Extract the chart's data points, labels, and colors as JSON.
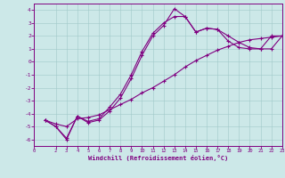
{
  "xlabel": "Windchill (Refroidissement éolien,°C)",
  "xlim": [
    0,
    23
  ],
  "ylim": [
    -6.5,
    4.5
  ],
  "yticks": [
    -6,
    -5,
    -4,
    -3,
    -2,
    -1,
    0,
    1,
    2,
    3,
    4
  ],
  "xticks": [
    0,
    2,
    3,
    4,
    5,
    6,
    7,
    8,
    9,
    10,
    11,
    12,
    13,
    14,
    15,
    16,
    17,
    18,
    19,
    20,
    21,
    22,
    23
  ],
  "bg_color": "#cce8e8",
  "line_color": "#800080",
  "line1_x": [
    1,
    2,
    3,
    4,
    5,
    6,
    7,
    8,
    9,
    10,
    11,
    12,
    13,
    14,
    15,
    16,
    17,
    18,
    19,
    20,
    21,
    22,
    23
  ],
  "line1_y": [
    -4.5,
    -5.0,
    -6.0,
    -4.2,
    -4.7,
    -4.5,
    -3.8,
    -2.8,
    -1.3,
    0.5,
    2.0,
    2.8,
    4.1,
    3.5,
    2.3,
    2.6,
    2.5,
    1.6,
    1.1,
    1.0,
    1.0,
    2.0,
    2.0
  ],
  "line2_x": [
    1,
    2,
    3,
    4,
    5,
    6,
    7,
    8,
    9,
    10,
    11,
    12,
    13,
    14,
    15,
    16,
    17,
    18,
    19,
    20,
    21,
    22,
    23
  ],
  "line2_y": [
    -4.5,
    -4.8,
    -5.0,
    -4.4,
    -4.3,
    -4.1,
    -3.7,
    -3.3,
    -2.9,
    -2.4,
    -2.0,
    -1.5,
    -1.0,
    -0.4,
    0.1,
    0.5,
    0.9,
    1.2,
    1.5,
    1.7,
    1.8,
    1.9,
    2.0
  ],
  "line3_x": [
    1,
    2,
    3,
    4,
    5,
    6,
    7,
    8,
    9,
    10,
    11,
    12,
    13,
    14,
    15,
    16,
    17,
    18,
    19,
    20,
    21,
    22,
    23
  ],
  "line3_y": [
    -4.5,
    -5.0,
    -5.9,
    -4.2,
    -4.6,
    -4.4,
    -3.5,
    -2.5,
    -1.0,
    0.8,
    2.2,
    3.0,
    3.5,
    3.5,
    2.3,
    2.6,
    2.5,
    2.0,
    1.5,
    1.1,
    1.0,
    1.0,
    2.0
  ]
}
